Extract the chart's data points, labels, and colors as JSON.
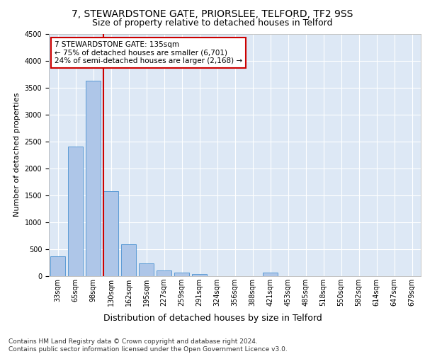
{
  "title1": "7, STEWARDSTONE GATE, PRIORSLEE, TELFORD, TF2 9SS",
  "title2": "Size of property relative to detached houses in Telford",
  "xlabel": "Distribution of detached houses by size in Telford",
  "ylabel": "Number of detached properties",
  "categories": [
    "33sqm",
    "65sqm",
    "98sqm",
    "130sqm",
    "162sqm",
    "195sqm",
    "227sqm",
    "259sqm",
    "291sqm",
    "324sqm",
    "356sqm",
    "388sqm",
    "421sqm",
    "453sqm",
    "485sqm",
    "518sqm",
    "550sqm",
    "582sqm",
    "614sqm",
    "647sqm",
    "679sqm"
  ],
  "values": [
    370,
    2410,
    3620,
    1580,
    595,
    230,
    110,
    65,
    40,
    5,
    0,
    0,
    65,
    0,
    0,
    0,
    0,
    0,
    0,
    0,
    0
  ],
  "bar_color": "#aec6e8",
  "bar_edge_color": "#5b9bd5",
  "vline_x_index": 3,
  "vline_color": "#cc0000",
  "annotation_text": "7 STEWARDSTONE GATE: 135sqm\n← 75% of detached houses are smaller (6,701)\n24% of semi-detached houses are larger (2,168) →",
  "annotation_box_color": "#ffffff",
  "annotation_border_color": "#cc0000",
  "ylim": [
    0,
    4500
  ],
  "footnote": "Contains HM Land Registry data © Crown copyright and database right 2024.\nContains public sector information licensed under the Open Government Licence v3.0.",
  "bg_color": "#dde8f5",
  "grid_color": "#ffffff",
  "title1_fontsize": 10,
  "title2_fontsize": 9,
  "xlabel_fontsize": 9,
  "ylabel_fontsize": 8,
  "tick_fontsize": 7,
  "annotation_fontsize": 7.5,
  "footnote_fontsize": 6.5
}
